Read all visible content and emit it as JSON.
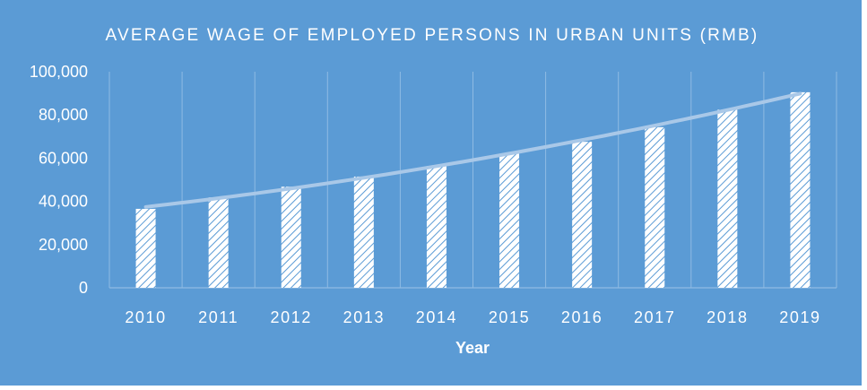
{
  "chart_data": {
    "type": "bar",
    "title": "AVERAGE WAGE OF EMPLOYED PERSONS IN URBAN UNITS (RMB)",
    "xlabel": "Year",
    "ylabel": "",
    "categories": [
      "2010",
      "2011",
      "2012",
      "2013",
      "2014",
      "2015",
      "2016",
      "2017",
      "2018",
      "2019"
    ],
    "values": [
      36539,
      41799,
      46769,
      51483,
      56360,
      62029,
      67569,
      74318,
      82413,
      90501
    ],
    "ylim": [
      0,
      100000
    ],
    "yticks": [
      "0",
      "20,000",
      "40,000",
      "60,000",
      "80,000",
      "100,000"
    ],
    "trendline": "polynomial",
    "grid": "vertical",
    "legend": "none"
  },
  "colors": {
    "background": "#5b9bd5",
    "bar_fill": "#ffffff",
    "hatch": "#5b9bd5",
    "trendline": "#a9c8e8",
    "gridline": "#8fbbe3",
    "text": "#ffffff"
  }
}
